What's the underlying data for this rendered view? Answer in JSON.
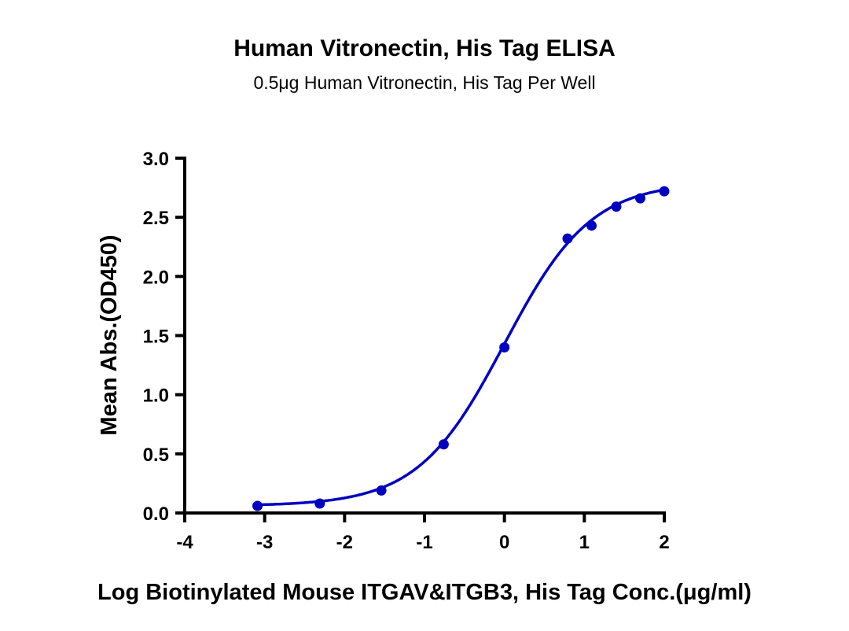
{
  "chart_data": {
    "type": "scatter",
    "title": "Human Vitronectin, His Tag ELISA",
    "subtitle": "0.5μg Human Vitronectin, His Tag Per Well",
    "xlabel": "Log Biotinylated Mouse ITGAV&ITGB3, His Tag Conc.(μg/ml)",
    "ylabel": "Mean Abs.(OD450)",
    "xlim": [
      -4,
      2
    ],
    "ylim": [
      0,
      3.0
    ],
    "xticks": [
      "-4",
      "-3",
      "-2",
      "-1",
      "0",
      "1",
      "2"
    ],
    "yticks": [
      "0.0",
      "0.5",
      "1.0",
      "1.5",
      "2.0",
      "2.5",
      "3.0"
    ],
    "grid": false,
    "color": "#0000c0",
    "fit": "sigmoidal curve",
    "series": [
      {
        "x": [
          -3.09,
          -2.31,
          -1.54,
          -0.76,
          0.0,
          0.79,
          1.09,
          1.4,
          1.7,
          2.0
        ],
        "y": [
          0.06,
          0.08,
          0.19,
          0.58,
          1.4,
          2.32,
          2.43,
          2.59,
          2.66,
          2.72
        ]
      }
    ]
  }
}
